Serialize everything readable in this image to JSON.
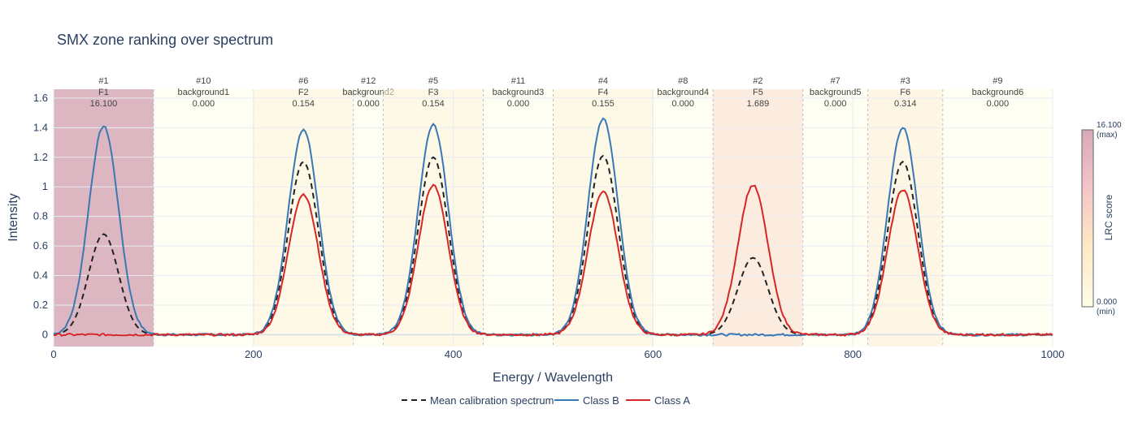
{
  "chart_data": {
    "type": "line",
    "title": "SMX zone ranking over spectrum",
    "xlabel": "Energy / Wavelength",
    "ylabel": "Intensity",
    "xlim": [
      0,
      1000
    ],
    "ylim": [
      -0.08,
      1.66
    ],
    "x_ticks": [
      0,
      200,
      400,
      600,
      800,
      1000
    ],
    "y_ticks": [
      0,
      0.2,
      0.4,
      0.6,
      0.8,
      1,
      1.2,
      1.4,
      1.6
    ],
    "grid": true,
    "legend_position": "bottom-center",
    "zones": [
      {
        "rank": "#1",
        "name": "F1",
        "score": "16.100",
        "score_value": 16.1,
        "x0": 0,
        "x1": 100
      },
      {
        "rank": "#10",
        "name": "background1",
        "score": "0.000",
        "score_value": 0.0,
        "x0": 100,
        "x1": 200
      },
      {
        "rank": "#6",
        "name": "F2",
        "score": "0.154",
        "score_value": 0.154,
        "x0": 200,
        "x1": 300
      },
      {
        "rank": "#12",
        "name": "background2",
        "score": "0.000",
        "score_value": 0.0,
        "x0": 300,
        "x1": 330
      },
      {
        "rank": "#5",
        "name": "F3",
        "score": "0.154",
        "score_value": 0.154,
        "x0": 330,
        "x1": 430
      },
      {
        "rank": "#11",
        "name": "background3",
        "score": "0.000",
        "score_value": 0.0,
        "x0": 430,
        "x1": 500
      },
      {
        "rank": "#4",
        "name": "F4",
        "score": "0.155",
        "score_value": 0.155,
        "x0": 500,
        "x1": 600
      },
      {
        "rank": "#8",
        "name": "background4",
        "score": "0.000",
        "score_value": 0.0,
        "x0": 600,
        "x1": 660
      },
      {
        "rank": "#2",
        "name": "F5",
        "score": "1.689",
        "score_value": 1.689,
        "x0": 660,
        "x1": 750
      },
      {
        "rank": "#7",
        "name": "background5",
        "score": "0.000",
        "score_value": 0.0,
        "x0": 750,
        "x1": 815
      },
      {
        "rank": "#3",
        "name": "F6",
        "score": "0.314",
        "score_value": 0.314,
        "x0": 815,
        "x1": 890
      },
      {
        "rank": "#9",
        "name": "background6",
        "score": "0.000",
        "score_value": 0.0,
        "x0": 890,
        "x1": 1000
      }
    ],
    "series": [
      {
        "name": "Mean calibration spectrum",
        "color": "#222222",
        "dash": true,
        "peaks": [
          {
            "center": 50,
            "height": 0.68
          },
          {
            "center": 250,
            "height": 1.17
          },
          {
            "center": 380,
            "height": 1.2
          },
          {
            "center": 550,
            "height": 1.21
          },
          {
            "center": 700,
            "height": 0.52
          },
          {
            "center": 850,
            "height": 1.17
          }
        ]
      },
      {
        "name": "Class B",
        "color": "#3a78b5",
        "dash": false,
        "peaks": [
          {
            "center": 50,
            "height": 1.41
          },
          {
            "center": 250,
            "height": 1.39
          },
          {
            "center": 380,
            "height": 1.42
          },
          {
            "center": 550,
            "height": 1.46
          },
          {
            "center": 850,
            "height": 1.4
          }
        ]
      },
      {
        "name": "Class A",
        "color": "#d62728",
        "dash": false,
        "peaks": [
          {
            "center": 250,
            "height": 0.95
          },
          {
            "center": 380,
            "height": 1.01
          },
          {
            "center": 550,
            "height": 0.97
          },
          {
            "center": 700,
            "height": 1.01
          },
          {
            "center": 850,
            "height": 0.98
          }
        ]
      }
    ],
    "colorbar": {
      "title": "LRC score",
      "max_label": "16.100",
      "max_note": "(max)",
      "min_label": "0.000",
      "min_note": "(min)",
      "colors": [
        "#fffde8",
        "#fde9c4",
        "#f3c1c8",
        "#d6aab7"
      ]
    }
  }
}
